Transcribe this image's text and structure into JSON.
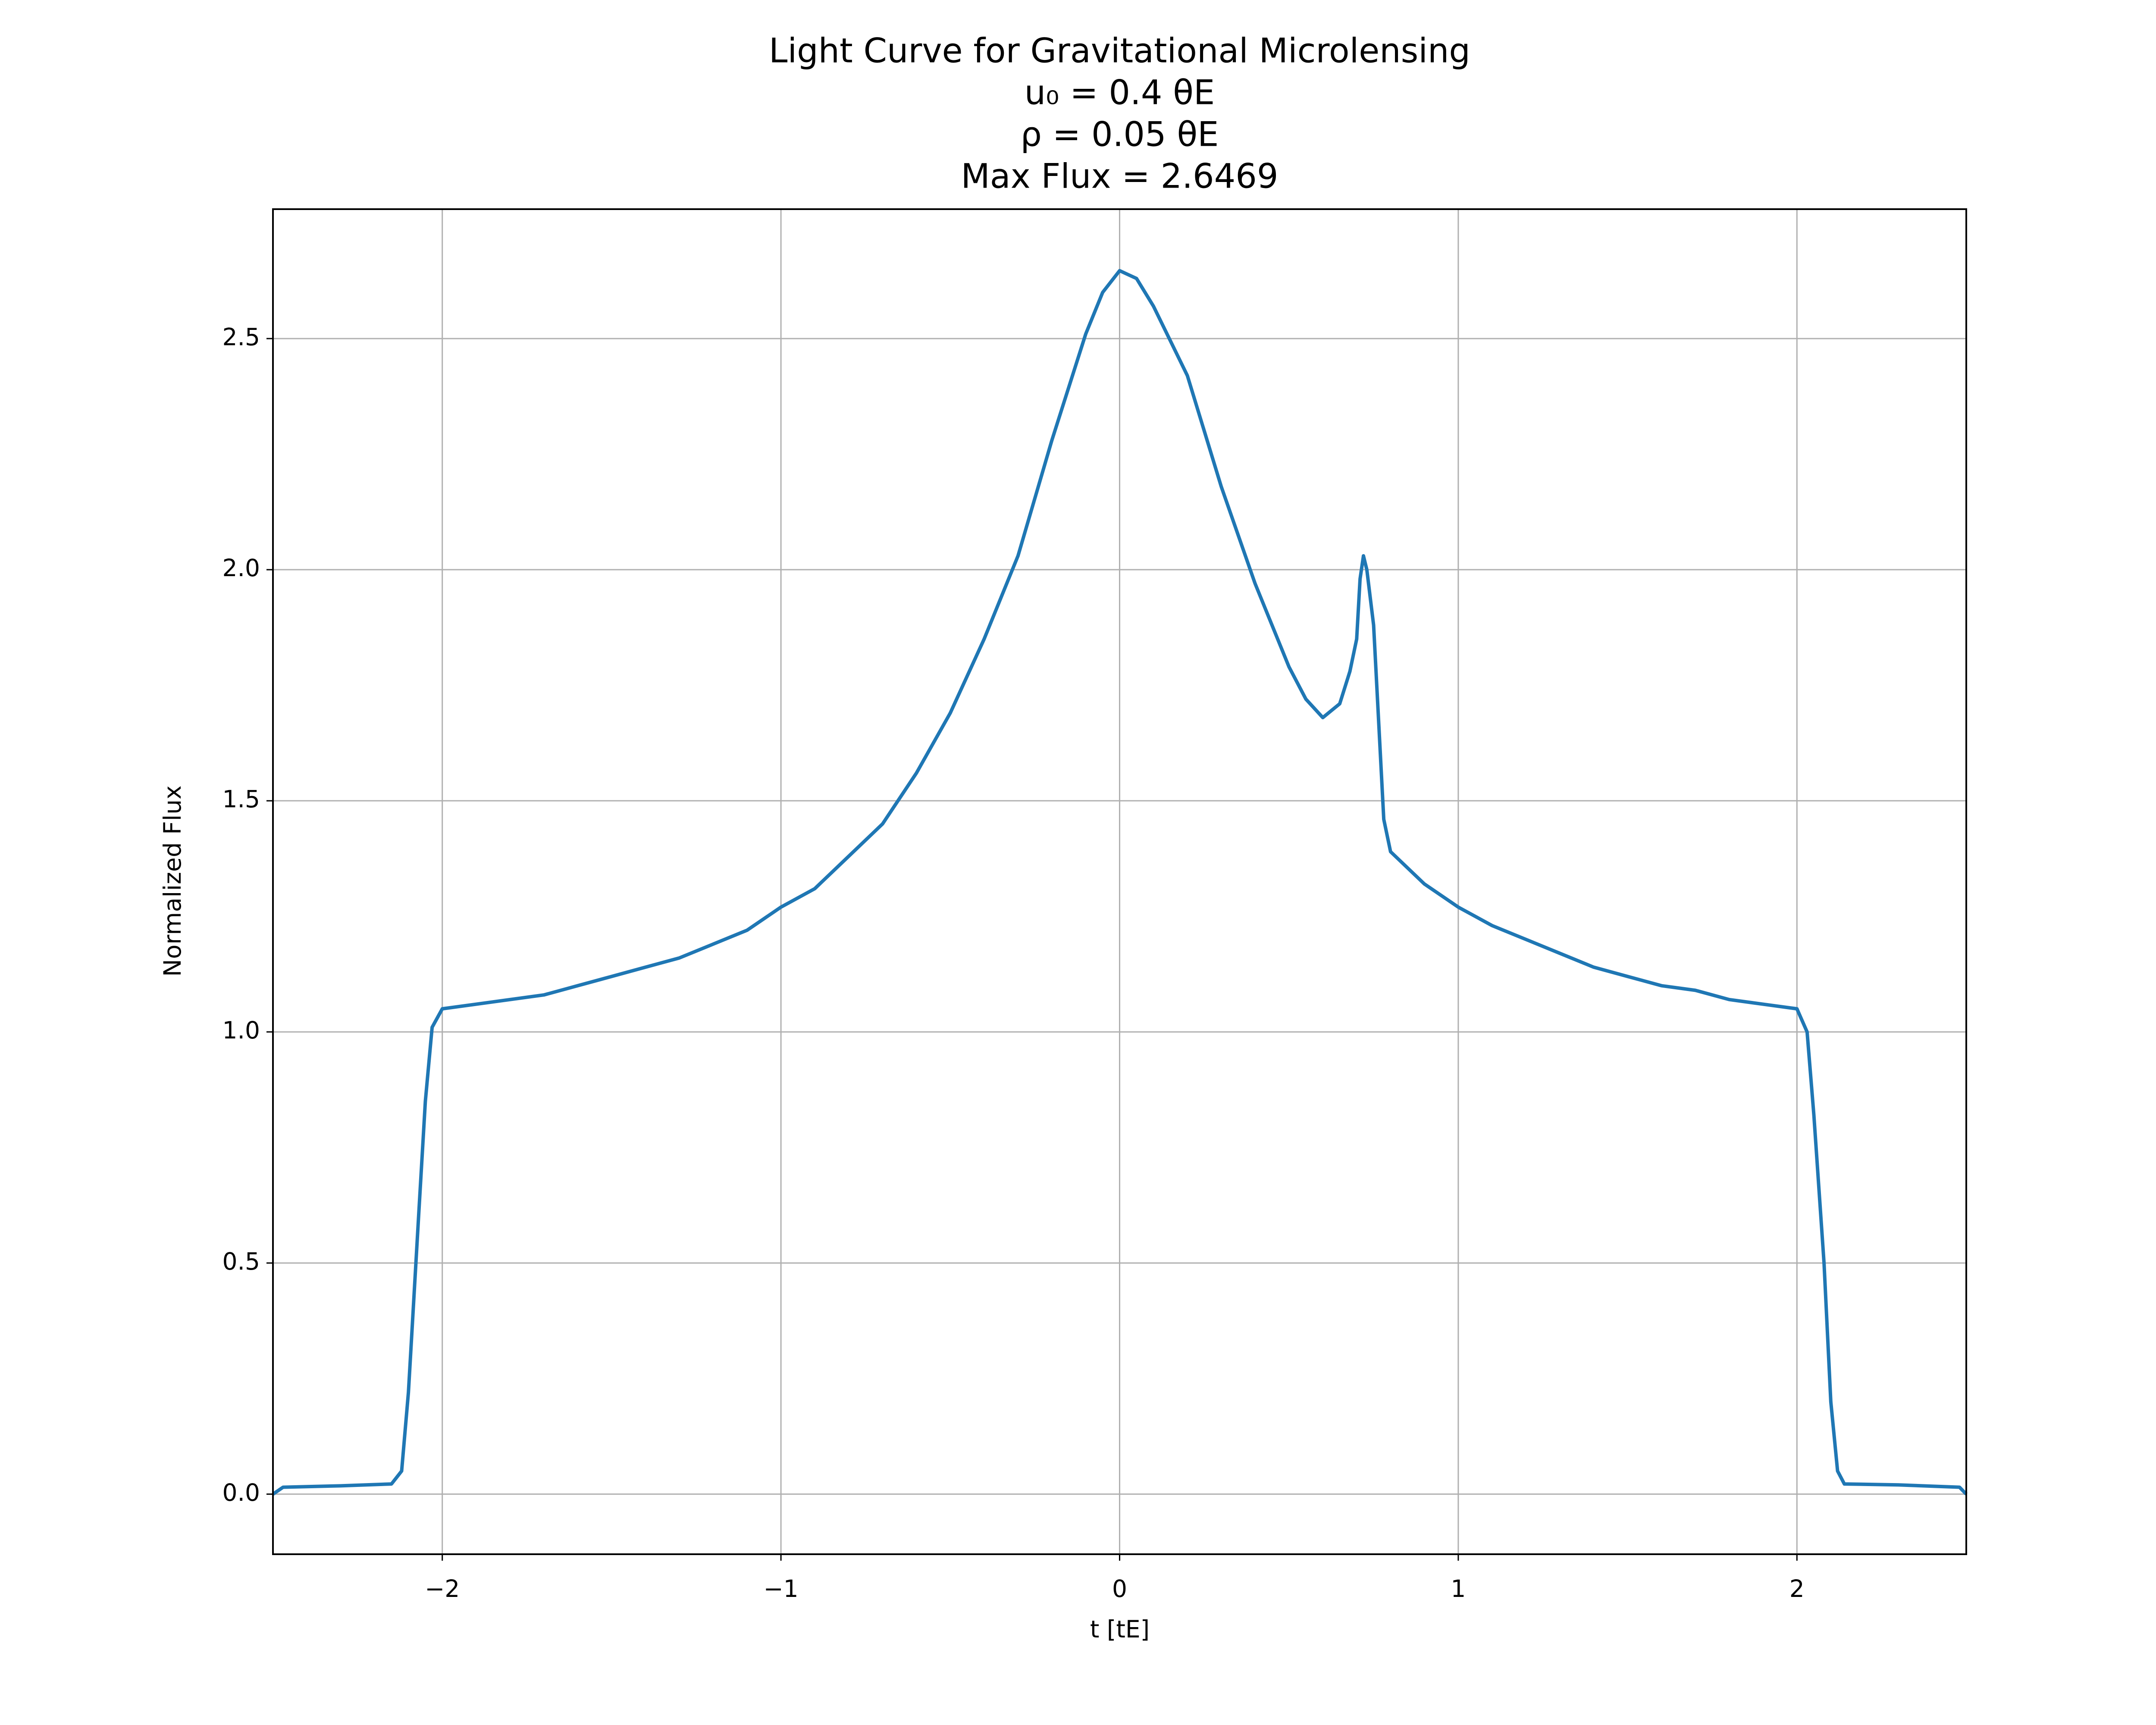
{
  "chart_data": {
    "type": "line",
    "title": [
      "Light Curve for Gravitational Microlensing",
      "u₀ = 0.4 θE",
      "ρ = 0.05 θE",
      "Max Flux = 2.6469"
    ],
    "x_label": "t [tE]",
    "y_label": "Normalized Flux",
    "x": [
      -2.5,
      -2.47,
      -2.3,
      -2.15,
      -2.12,
      -2.1,
      -2.07,
      -2.05,
      -2.03,
      -2.0,
      -1.9,
      -1.8,
      -1.7,
      -1.6,
      -1.5,
      -1.4,
      -1.3,
      -1.2,
      -1.1,
      -1.0,
      -0.9,
      -0.8,
      -0.7,
      -0.6,
      -0.5,
      -0.4,
      -0.3,
      -0.2,
      -0.1,
      -0.05,
      0,
      0.05,
      0.1,
      0.2,
      0.3,
      0.4,
      0.5,
      0.55,
      0.6,
      0.65,
      0.68,
      0.7,
      0.71,
      0.72,
      0.73,
      0.75,
      0.77,
      0.78,
      0.8,
      0.9,
      1.0,
      1.1,
      1.2,
      1.3,
      1.4,
      1.5,
      1.6,
      1.7,
      1.8,
      1.9,
      2.0,
      2.03,
      2.05,
      2.08,
      2.1,
      2.12,
      2.14,
      2.3,
      2.48,
      2.5
    ],
    "series": [
      {
        "color": "#1f77b4",
        "values": [
          0.0,
          0.015,
          0.018,
          0.022,
          0.05,
          0.22,
          0.6,
          0.85,
          1.01,
          1.05,
          1.06,
          1.07,
          1.08,
          1.1,
          1.12,
          1.14,
          1.16,
          1.19,
          1.22,
          1.27,
          1.31,
          1.38,
          1.45,
          1.56,
          1.69,
          1.85,
          2.03,
          2.28,
          2.51,
          2.6,
          2.6469,
          2.63,
          2.57,
          2.42,
          2.18,
          1.97,
          1.79,
          1.72,
          1.68,
          1.71,
          1.78,
          1.85,
          1.98,
          2.03,
          2.0,
          1.88,
          1.6,
          1.46,
          1.39,
          1.32,
          1.27,
          1.23,
          1.2,
          1.17,
          1.14,
          1.12,
          1.1,
          1.09,
          1.07,
          1.06,
          1.05,
          1.0,
          0.82,
          0.5,
          0.2,
          0.05,
          0.022,
          0.02,
          0.015,
          0.0
        ]
      }
    ],
    "xlim": [
      -2.5,
      2.5
    ],
    "ylim": [
      -0.13,
      2.78
    ],
    "xticks": [
      {
        "value": -2,
        "label": "−2"
      },
      {
        "value": -1,
        "label": "−1"
      },
      0,
      1,
      2
    ],
    "yticks": [
      {
        "value": 0,
        "label": "0.0"
      },
      0.5,
      {
        "value": 1,
        "label": "1.0"
      },
      1.5,
      {
        "value": 2,
        "label": "2.0"
      },
      2.5
    ],
    "grid": true
  }
}
